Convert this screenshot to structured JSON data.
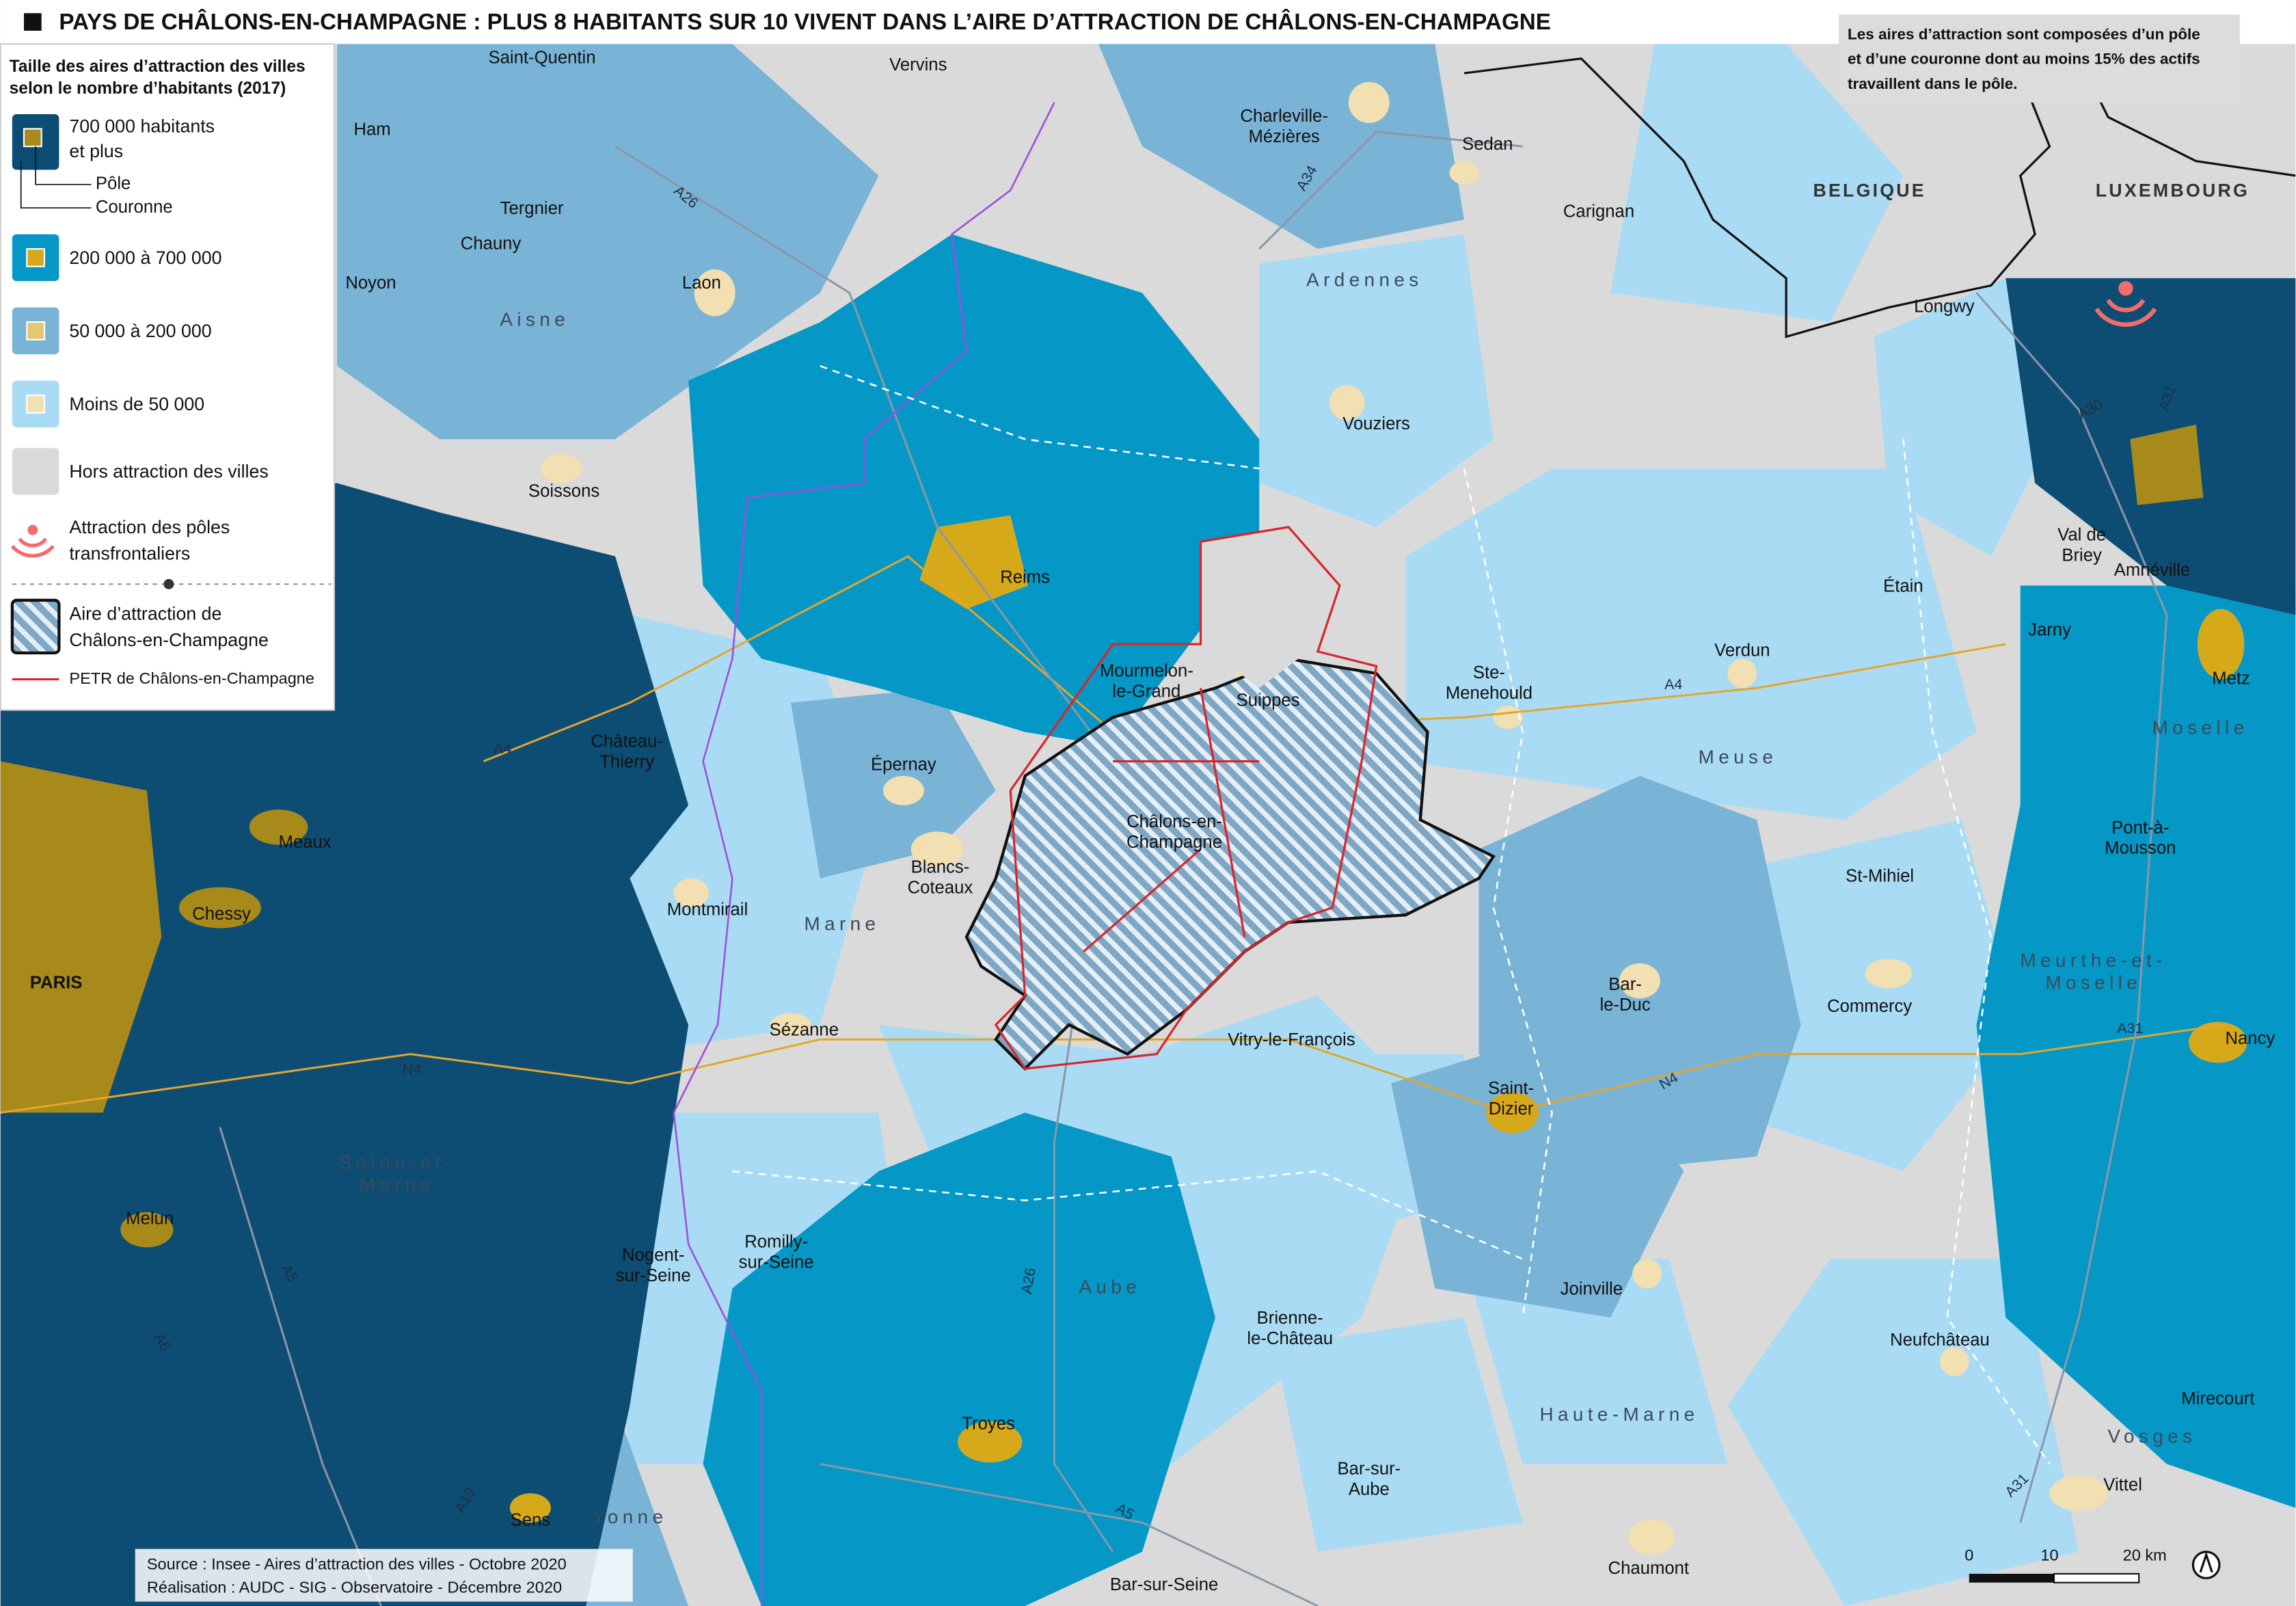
{
  "title": "PAYS DE CHÂLONS-EN-CHAMPAGNE : PLUS 8 HABITANTS SUR 10 VIVENT DANS L’AIRE D’ATTRACTION DE CHÂLONS-EN-CHAMPAGNE",
  "note": [
    "Les aires d’attraction sont composées d’un pôle",
    "et d’une couronne dont au moins 15% des actifs",
    "travaillent dans le pôle."
  ],
  "legend": {
    "title": [
      "Taille des aires d’attraction des villes",
      "selon le nombre d’habitants (2017)"
    ],
    "items": [
      [
        "700 000 habitants",
        "et plus"
      ],
      [
        "Pôle"
      ],
      [
        "Couronne"
      ],
      [
        "200 000 à 700 000"
      ],
      [
        "50 000 à 200 000"
      ],
      [
        "Moins de 50 000"
      ],
      [
        "Hors attraction des villes"
      ],
      [
        "Attraction des pôles",
        "transfrontaliers"
      ],
      [
        "Aire d’attraction de",
        "Châlons-en-Champagne"
      ],
      [
        "PETR de Châlons-en-Champagne"
      ]
    ]
  },
  "places": [
    [
      "Saint-Quentin"
    ],
    [
      "Vervins"
    ],
    [
      "Ham"
    ],
    [
      "Charleville-",
      "Mézières"
    ],
    [
      "Sedan"
    ],
    [
      "Tergnier"
    ],
    [
      "Carignan"
    ],
    [
      "Chauny"
    ],
    [
      "Noyon"
    ],
    [
      "Laon"
    ],
    [
      "Longwy"
    ],
    [
      "Vouziers"
    ],
    [
      "Soissons"
    ],
    [
      "Reims"
    ],
    [
      "Val de",
      "Briey"
    ],
    [
      "Amnéville"
    ],
    [
      "Étain"
    ],
    [
      "Jarny"
    ],
    [
      "Verdun"
    ],
    [
      "Metz"
    ],
    [
      "Mourmelon-",
      "le-Grand"
    ],
    [
      "Suippes"
    ],
    [
      "Ste-",
      "Menehould"
    ],
    [
      "Château-",
      "Thierry"
    ],
    [
      "Épernay"
    ],
    [
      "Châlons-en-",
      "Champagne"
    ],
    [
      "Meaux"
    ],
    [
      "Pont-à-",
      "Mousson"
    ],
    [
      "Blancs-",
      "Coteaux"
    ],
    [
      "St-Mihiel"
    ],
    [
      "Chessy"
    ],
    [
      "Montmirail"
    ],
    [
      "PARIS"
    ],
    [
      "Bar-",
      "le-Duc"
    ],
    [
      "Commercy"
    ],
    [
      "Sézanne"
    ],
    [
      "Nancy"
    ],
    [
      "Vitry-le-François"
    ],
    [
      "Saint-",
      "Dizier"
    ],
    [
      "Melun"
    ],
    [
      "Nogent-",
      "sur-Seine"
    ],
    [
      "Romilly-",
      "sur-Seine"
    ],
    [
      "Joinville"
    ],
    [
      "Brienne-",
      "le-Château"
    ],
    [
      "Neufchâteau"
    ],
    [
      "Mirecourt"
    ],
    [
      "Troyes"
    ],
    [
      "Bar-sur-",
      "Aube"
    ],
    [
      "Vittel"
    ],
    [
      "Sens"
    ],
    [
      "Chaumont"
    ],
    [
      "Bar-sur-Seine"
    ]
  ],
  "departments": [
    [
      "Aisne"
    ],
    [
      "Ardennes"
    ],
    [
      "Marne"
    ],
    [
      "Meuse"
    ],
    [
      "Moselle"
    ],
    [
      "Meurthe-et-",
      "Moselle"
    ],
    [
      "Seine-et-",
      "Marne"
    ],
    [
      "Aube"
    ],
    [
      "Haute-Marne"
    ],
    [
      "Vosges"
    ],
    [
      "Yonne"
    ]
  ],
  "countries": [
    "BELGIQUE",
    "LUXEMBOURG"
  ],
  "roads": [
    "A26",
    "A34",
    "A4",
    "A4",
    "A30",
    "A31",
    "A31",
    "A31",
    "N4",
    "N4",
    "A5",
    "A5",
    "A26",
    "A19",
    "A6"
  ],
  "scale": [
    "0",
    "10",
    "20 km"
  ],
  "source": [
    "Source : Insee - Aires d’attraction des villes - Octobre  2020",
    "Réalisation : AUDC - SIG - Observatoire - Décembre 2020"
  ]
}
